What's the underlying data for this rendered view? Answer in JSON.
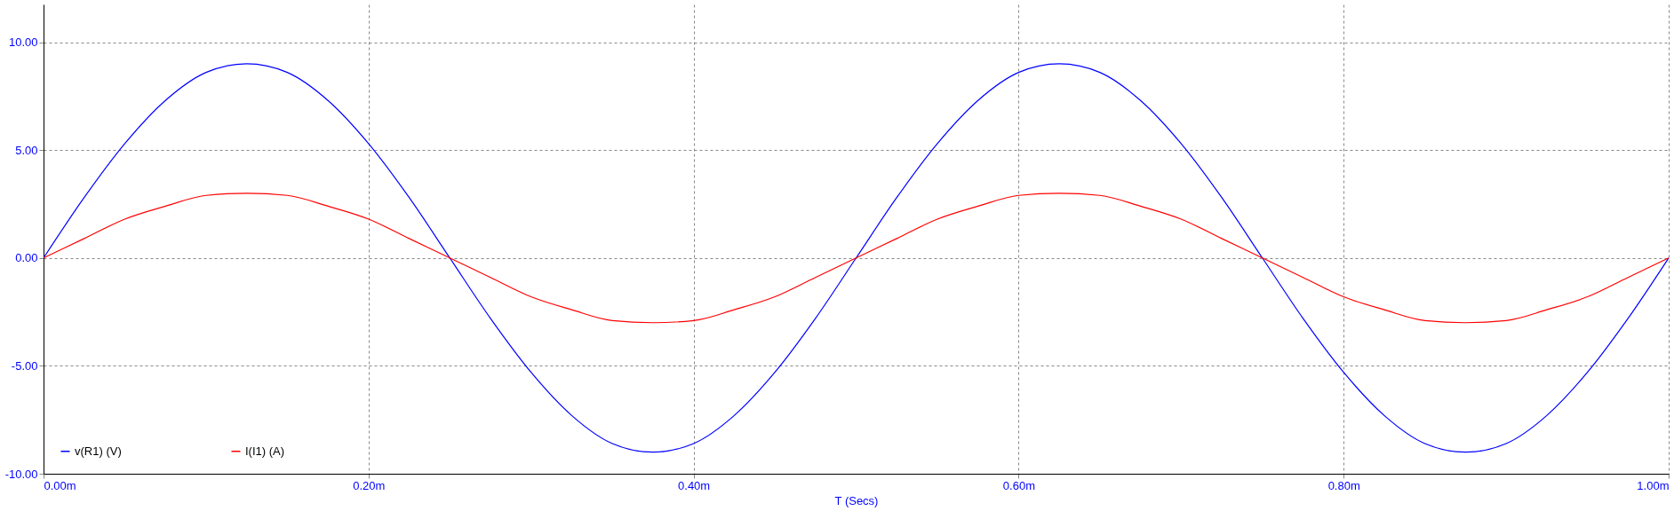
{
  "chart_data": {
    "type": "line",
    "xlabel": "T (Secs)",
    "x": [
      0,
      0.025,
      0.05,
      0.075,
      0.1,
      0.125,
      0.15,
      0.175,
      0.2,
      0.225,
      0.25,
      0.275,
      0.3,
      0.325,
      0.35,
      0.375,
      0.4,
      0.425,
      0.45,
      0.475,
      0.5,
      0.525,
      0.55,
      0.575,
      0.6,
      0.625,
      0.65,
      0.675,
      0.7,
      0.725,
      0.75,
      0.775,
      0.8,
      0.825,
      0.85,
      0.875,
      0.9,
      0.925,
      0.95,
      0.975,
      1
    ],
    "series": [
      {
        "name": "v(R1) (V)",
        "color": "#0000ff",
        "values": [
          0,
          2.8,
          5.3,
          7.3,
          8.6,
          9.0,
          8.6,
          7.3,
          5.3,
          2.8,
          0,
          -2.8,
          -5.3,
          -7.3,
          -8.6,
          -9.0,
          -8.6,
          -7.3,
          -5.3,
          -2.8,
          0,
          2.8,
          5.3,
          7.3,
          8.6,
          9.0,
          8.6,
          7.3,
          5.3,
          2.8,
          0,
          -2.8,
          -5.3,
          -7.3,
          -8.6,
          -9.0,
          -8.6,
          -7.3,
          -5.3,
          -2.8,
          0
        ]
      },
      {
        "name": "I(I1) (A)",
        "color": "#ff0000",
        "values": [
          0,
          0.9,
          1.8,
          2.4,
          2.9,
          3.0,
          2.9,
          2.4,
          1.8,
          0.9,
          0,
          -0.9,
          -1.8,
          -2.4,
          -2.9,
          -3.0,
          -2.9,
          -2.4,
          -1.8,
          -0.9,
          0,
          0.9,
          1.8,
          2.4,
          2.9,
          3.0,
          2.9,
          2.4,
          1.8,
          0.9,
          0,
          -0.9,
          -1.8,
          -2.4,
          -2.9,
          -3.0,
          -2.9,
          -2.4,
          -1.8,
          -0.9,
          0
        ]
      }
    ],
    "xlim": [
      0,
      1
    ],
    "xticks": [
      {
        "value": 0,
        "label": "0.00m"
      },
      {
        "value": 0.2,
        "label": "0.20m"
      },
      {
        "value": 0.4,
        "label": "0.40m"
      },
      {
        "value": 0.6,
        "label": "0.60m"
      },
      {
        "value": 0.8,
        "label": "0.80m"
      },
      {
        "value": 1,
        "label": "1.00m"
      }
    ],
    "ylim": [
      -10,
      11.75
    ],
    "yticks": [
      {
        "value": -10,
        "label": "-10.00"
      },
      {
        "value": -5,
        "label": "-5.00"
      },
      {
        "value": 0,
        "label": "0.00"
      },
      {
        "value": 5,
        "label": "5.00"
      },
      {
        "value": 10,
        "label": "10.00"
      }
    ],
    "grid": true,
    "legend": "bottom left",
    "marker": "none",
    "line_style": "solid"
  }
}
